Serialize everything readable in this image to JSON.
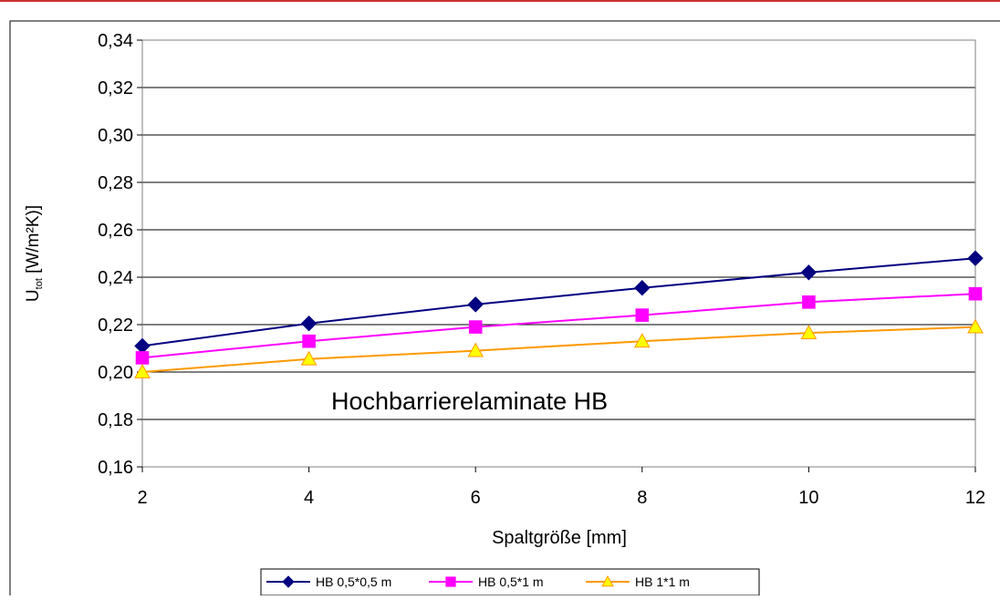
{
  "chart_data": {
    "type": "line",
    "title": "",
    "annotation": "Hochbarrierelaminate HB",
    "xlabel": "Spaltgröße [mm]",
    "ylabel_main": "U",
    "ylabel_sub": "tot",
    "ylabel_unit": " [W/m²K)]",
    "x": [
      2,
      4,
      6,
      8,
      10,
      12
    ],
    "xlim": [
      2,
      12
    ],
    "ylim": [
      0.16,
      0.34
    ],
    "x_ticks": [
      2,
      4,
      6,
      8,
      10,
      12
    ],
    "x_tick_labels": [
      "2",
      "4",
      "6",
      "8",
      "10",
      "12"
    ],
    "y_ticks": [
      0.16,
      0.18,
      0.2,
      0.22,
      0.24,
      0.26,
      0.28,
      0.3,
      0.32,
      0.34
    ],
    "y_tick_labels": [
      "0,16",
      "0,18",
      "0,20",
      "0,22",
      "0,24",
      "0,26",
      "0,28",
      "0,30",
      "0,32",
      "0,34"
    ],
    "grid": true,
    "legend_position": "bottom",
    "series": [
      {
        "name": "HB 0,5*0,5 m",
        "marker": "diamond",
        "color": "#000080",
        "fill": "#000080",
        "values": [
          0.211,
          0.2205,
          0.2285,
          0.2355,
          0.242,
          0.248
        ]
      },
      {
        "name": "HB 0,5*1 m",
        "marker": "square",
        "color": "#ff00ff",
        "fill": "#ff00ff",
        "values": [
          0.206,
          0.213,
          0.219,
          0.224,
          0.2295,
          0.233
        ]
      },
      {
        "name": "HB 1*1 m",
        "marker": "triangle",
        "color": "#ff9900",
        "fill": "#ffff00",
        "values": [
          0.2,
          0.2055,
          0.209,
          0.213,
          0.2165,
          0.219
        ]
      }
    ],
    "colors": {
      "frame_accent": "#cc3333"
    }
  }
}
